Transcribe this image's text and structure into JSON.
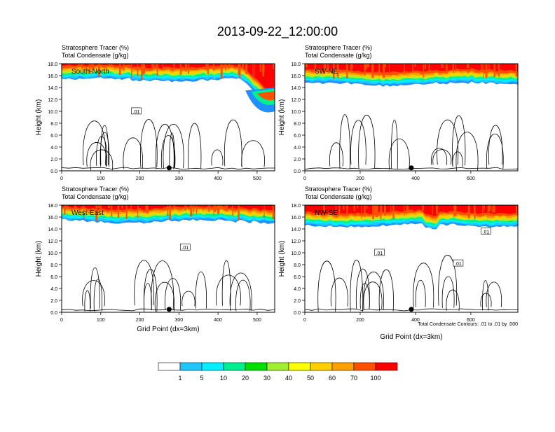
{
  "title": "2013-09-22_12:00:00",
  "colors": {
    "bins": [
      "#ffffff",
      "#1e90ff",
      "#1ec8ff",
      "#00f0ff",
      "#00f090",
      "#00e000",
      "#a0f030",
      "#ffff00",
      "#ffd000",
      "#ffa000",
      "#ff5000",
      "#ff0000"
    ]
  },
  "chart_data": [
    {
      "type": "heatmap",
      "label": "South-North",
      "subtitle1": "Stratosphere Tracer   (%)",
      "subtitle2": "Total Condensate   (g/kg)",
      "ylabel": "Height (km)",
      "xlabel": "",
      "xlim": [
        0,
        545
      ],
      "ylim": [
        0,
        18
      ],
      "xticks": [
        "0",
        "100",
        "200",
        "300",
        "400",
        "500"
      ],
      "yticks": [
        "0.0",
        "2.0",
        "4.0",
        "6.0",
        "8.0",
        "10.0",
        "12.0",
        "14.0",
        "16.0",
        "18.0"
      ],
      "contour_labels": [
        ".01"
      ],
      "dot_x": 275
    },
    {
      "type": "heatmap",
      "label": "SW-NE",
      "subtitle1": "Stratosphere Tracer   (%)",
      "subtitle2": "Total Condensate   (g/kg)",
      "ylabel": "Height (km)",
      "xlabel": "",
      "xlim": [
        0,
        770
      ],
      "ylim": [
        0,
        18
      ],
      "xticks": [
        "0",
        "200",
        "400",
        "600"
      ],
      "yticks": [
        "0.0",
        "2.0",
        "4.0",
        "6.0",
        "8.0",
        "10.0",
        "12.0",
        "14.0",
        "16.0",
        "18.0"
      ],
      "contour_labels": [],
      "dot_x": 385
    },
    {
      "type": "heatmap",
      "label": "West-East",
      "subtitle1": "Stratosphere Tracer   (%)",
      "subtitle2": "Total Condensate   (g/kg)",
      "ylabel": "Height (km)",
      "xlabel": "Grid Point (dx=3km)",
      "xlim": [
        0,
        545
      ],
      "ylim": [
        0,
        18
      ],
      "xticks": [
        "0",
        "100",
        "200",
        "300",
        "400",
        "500"
      ],
      "yticks": [
        "0.0",
        "2.0",
        "4.0",
        "6.0",
        "8.0",
        "10.0",
        "12.0",
        "14.0",
        "16.0",
        "18.0"
      ],
      "contour_labels": [
        ".01"
      ],
      "dot_x": 275
    },
    {
      "type": "heatmap",
      "label": "NW-SE",
      "subtitle1": "Stratosphere Tracer   (%)",
      "subtitle2": "Total Condensate   (g/kg)",
      "ylabel": "Height (km)",
      "xlabel": "Grid Point (dx=3km)",
      "xlim": [
        0,
        770
      ],
      "ylim": [
        0,
        18
      ],
      "xticks": [
        "0",
        "200",
        "400",
        "600"
      ],
      "yticks": [
        "0.0",
        "2.0",
        "4.0",
        "6.0",
        "8.0",
        "10.0",
        "12.0",
        "14.0",
        "16.0",
        "18.0"
      ],
      "contour_labels": [
        ".01",
        ".01",
        ".01"
      ],
      "dot_x": 385,
      "contour_note": "Total Condensate Contours: .01 to .01 by .000"
    }
  ],
  "colorbar": {
    "labels": [
      "1",
      "5",
      "10",
      "20",
      "30",
      "40",
      "50",
      "60",
      "70",
      "100"
    ]
  }
}
